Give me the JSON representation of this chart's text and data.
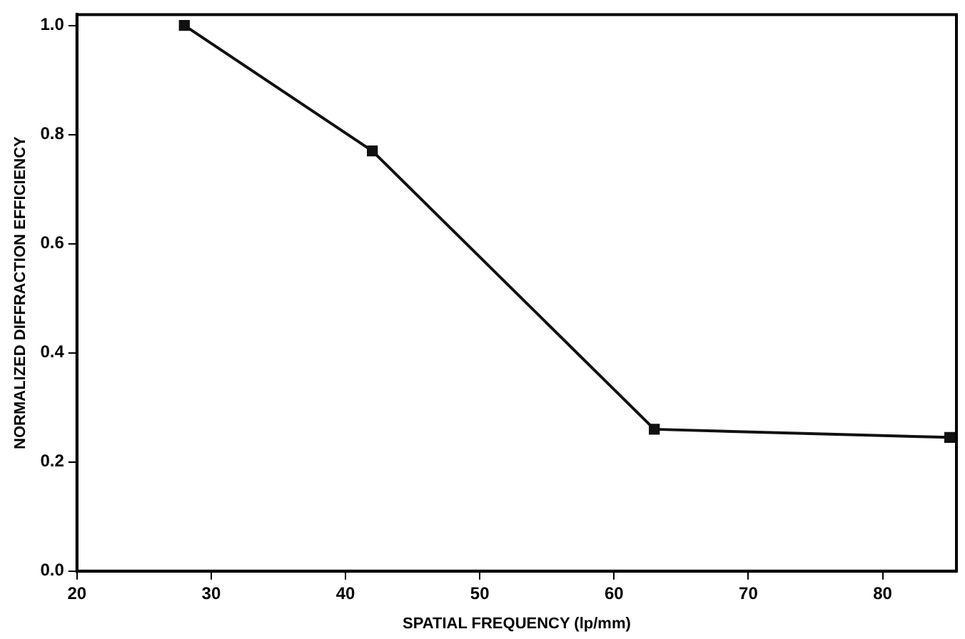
{
  "chart_data": {
    "type": "line",
    "xlabel": "SPATIAL FREQUENCY (lp/mm)",
    "ylabel": "NORMALIZED DIFFRACTION EFFICIENCY",
    "x": [
      28,
      42,
      63,
      85
    ],
    "series": [
      {
        "color": "#111111",
        "values": [
          1.0,
          0.77,
          0.26,
          0.245
        ]
      }
    ],
    "xlim": [
      20,
      85.5
    ],
    "xticks": [
      20,
      30,
      40,
      50,
      60,
      70,
      80
    ],
    "ylim": [
      0,
      1.02
    ],
    "yticks": [
      {
        "value": 0,
        "label": "0.0"
      },
      0.2,
      0.4,
      0.6,
      0.8,
      {
        "value": 1,
        "label": "1.0"
      }
    ],
    "marker": "square",
    "line_style": "solid",
    "grid": false,
    "legend": false
  }
}
